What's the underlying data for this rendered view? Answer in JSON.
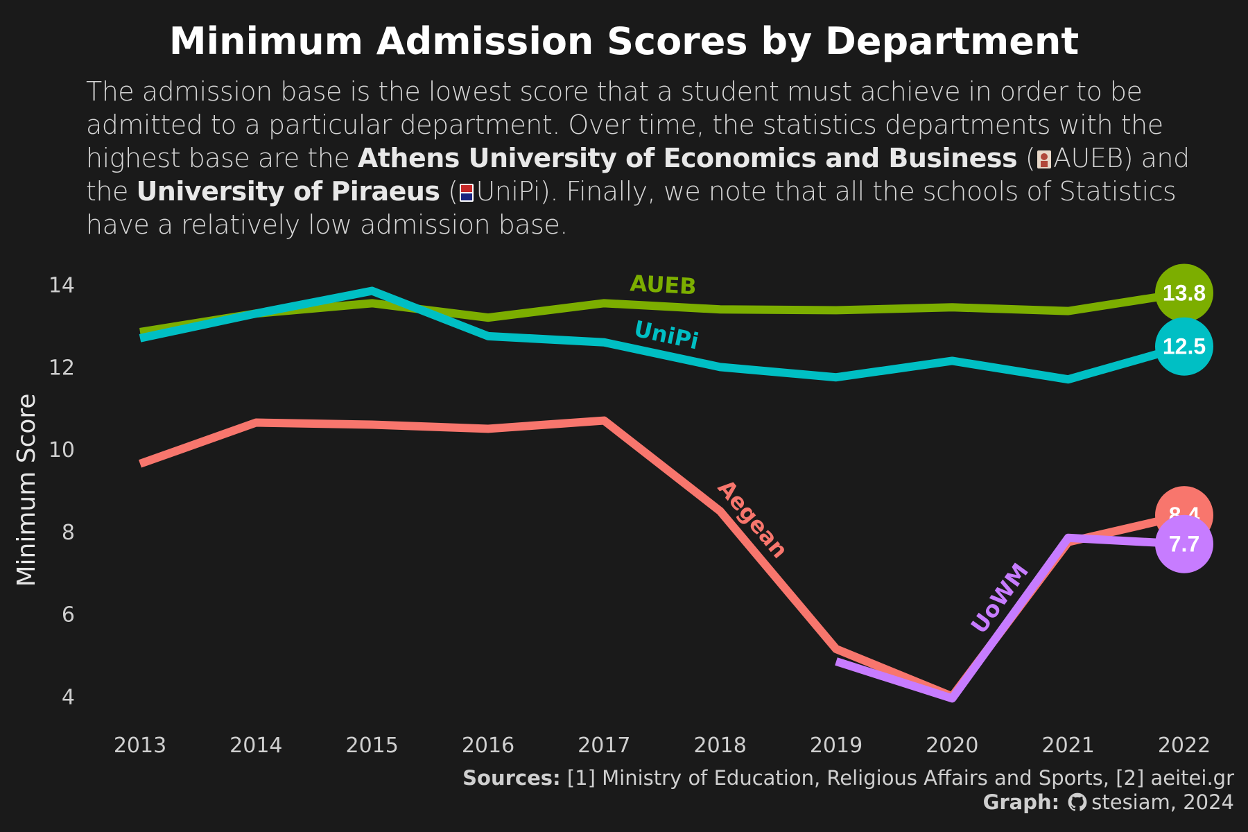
{
  "title": "Minimum  Admission Scores by Department",
  "subtitle": {
    "part1": "The admission base is the lowest score that a student must achieve in order to be admitted to a particular department. Over time, the statistics departments with the highest base are the ",
    "bold1": "Athens University of Economics and Business",
    "part2": " (",
    "part3": "AUEB) and the ",
    "bold2": "University of Piraeus",
    "part4": " (",
    "part5": "UniPi). Finally,  we note that all the schools of Statistics have a relatively low admission base."
  },
  "caption": {
    "sources_label": "Sources:",
    "sources_text": " [1] Ministry  of Education,  Religious  Affairs and  Sports, [2] aeitei.gr",
    "graph_label": "Graph:",
    "graph_text": "stesiam,  2024"
  },
  "icons": {
    "aueb": "auer-logo-icon",
    "unipi": "unipi-logo-icon",
    "github": "github-icon"
  },
  "chart_data": {
    "type": "line",
    "ylabel": "Minimum Score",
    "xlabel": "",
    "ylim": [
      3.4,
      14.6
    ],
    "yticks": [
      4,
      6,
      8,
      10,
      12,
      14
    ],
    "x": [
      2013,
      2014,
      2015,
      2016,
      2017,
      2018,
      2019,
      2020,
      2021,
      2022
    ],
    "series": [
      {
        "name": "AUEB",
        "color": "#7cae00",
        "values": [
          12.85,
          13.3,
          13.55,
          13.2,
          13.55,
          13.4,
          13.38,
          13.45,
          13.36,
          13.8
        ],
        "end_label": "13.8"
      },
      {
        "name": "UniPi",
        "color": "#00bfc4",
        "values": [
          12.7,
          13.3,
          13.85,
          12.75,
          12.6,
          12.0,
          11.75,
          12.15,
          11.7,
          12.5
        ],
        "end_label": "12.5"
      },
      {
        "name": "Aegean",
        "color": "#f8766d",
        "values": [
          9.65,
          10.65,
          10.6,
          10.5,
          10.7,
          8.5,
          5.15,
          4.0,
          7.75,
          8.4
        ],
        "end_label": "8.4"
      },
      {
        "name": "UoWM",
        "color": "#c77cff",
        "values": [
          null,
          null,
          null,
          null,
          null,
          null,
          4.85,
          3.95,
          7.85,
          7.7
        ],
        "end_label": "7.7"
      }
    ]
  }
}
